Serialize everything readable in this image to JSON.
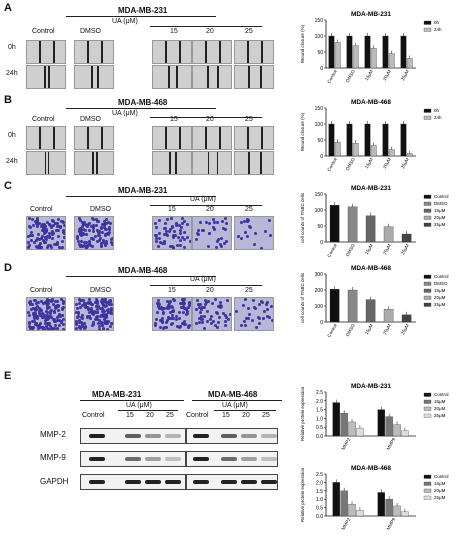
{
  "panels": {
    "A": {
      "letter": "A",
      "title": "MDA-MB-231",
      "col_labels": [
        "Control",
        "DMSO"
      ],
      "ua_label": "UA (μM)",
      "ua_doses": [
        "15",
        "20",
        "25"
      ],
      "row_labels": [
        "0h",
        "24h"
      ]
    },
    "B": {
      "letter": "B",
      "title": "MDA-MB-468",
      "col_labels": [
        "Control",
        "DMSO"
      ],
      "ua_label": "UA (μM)",
      "ua_doses": [
        "15",
        "20",
        "25"
      ],
      "row_labels": [
        "0h",
        "24h"
      ]
    },
    "C": {
      "letter": "C",
      "title": "MDA-MB-231",
      "col_labels": [
        "Control",
        "DMSO"
      ],
      "ua_label": "UA (μM)",
      "ua_doses": [
        "15",
        "20",
        "25"
      ]
    },
    "D": {
      "letter": "D",
      "title": "MDA-MB-468",
      "col_labels": [
        "Control",
        "DMSO"
      ],
      "ua_label": "UA (μM)",
      "ua_doses": [
        "15",
        "20",
        "25"
      ]
    },
    "E": {
      "letter": "E",
      "cell_lines": [
        "MDA-MB-231",
        "MDA-MB-468"
      ],
      "ua_label": "UA (μM)",
      "lane_labels": [
        "Control",
        "15",
        "20",
        "25"
      ],
      "proteins": [
        "MMP-2",
        "MMP-9",
        "GAPDH"
      ]
    }
  },
  "chart_data": [
    {
      "type": "bar",
      "title": "MDA-MB-231",
      "categories": [
        "Control",
        "DMSO",
        "15μM",
        "20μM",
        "25μM"
      ],
      "ylabel": "Wound closure (%)",
      "ylim": [
        0,
        150
      ],
      "yticks": [
        "0",
        "50",
        "100",
        "150"
      ],
      "legend": "top-right",
      "series": [
        {
          "name": "0h",
          "values": [
            100,
            100,
            100,
            100,
            100
          ],
          "color": "#111111"
        },
        {
          "name": "24h",
          "values": [
            80,
            70,
            62,
            45,
            30
          ],
          "color": "#bbbbbb"
        }
      ]
    },
    {
      "type": "bar",
      "title": "MDA-MB-468",
      "categories": [
        "Control",
        "DMSO",
        "15μM",
        "20μM",
        "25μM"
      ],
      "ylabel": "Wound closure (%)",
      "ylim": [
        0,
        150
      ],
      "yticks": [
        "0",
        "50",
        "100",
        "150"
      ],
      "legend": "top-right",
      "series": [
        {
          "name": "0h",
          "values": [
            100,
            100,
            100,
            100,
            100
          ],
          "color": "#111111"
        },
        {
          "name": "24h",
          "values": [
            43,
            40,
            33,
            20,
            8
          ],
          "color": "#bbbbbb"
        }
      ]
    },
    {
      "type": "bar",
      "title": "MDA-MB-231",
      "categories": [
        "Control",
        "DMSO",
        "15μM",
        "20μM",
        "25μM"
      ],
      "ylabel": "cell counts of TNBC cells",
      "ylim": [
        0,
        150
      ],
      "yticks": [
        "0",
        "50",
        "100",
        "150"
      ],
      "legend": "right",
      "series": [
        {
          "name": "",
          "values": [
            115,
            110,
            82,
            48,
            25
          ],
          "colors": [
            "#111111",
            "#888888",
            "#666666",
            "#aaaaaa",
            "#444444"
          ]
        }
      ],
      "legend_entries": [
        "Control",
        "DMSO",
        "15μM",
        "20μM",
        "25μM"
      ]
    },
    {
      "type": "bar",
      "title": "MDA-MB-468",
      "categories": [
        "Control",
        "DMSO",
        "15μM",
        "20μM",
        "25μM"
      ],
      "ylabel": "cell counts of TNBC cells",
      "ylim": [
        0,
        300
      ],
      "yticks": [
        "0",
        "100",
        "200",
        "300"
      ],
      "legend": "right",
      "series": [
        {
          "name": "",
          "values": [
            205,
            200,
            140,
            80,
            45
          ],
          "colors": [
            "#111111",
            "#888888",
            "#666666",
            "#aaaaaa",
            "#444444"
          ]
        }
      ],
      "legend_entries": [
        "Control",
        "DMSO",
        "15μM",
        "20μM",
        "25μM"
      ]
    },
    {
      "type": "bar",
      "title": "MDA-MB-231",
      "categories": [
        "MMP2",
        "MMP9"
      ],
      "ylabel": "Relative protein expression",
      "ylim": [
        0,
        2.5
      ],
      "yticks": [
        "0.0",
        "0.5",
        "1.0",
        "1.5",
        "2.0",
        "2.5"
      ],
      "legend": "right",
      "series": [
        {
          "name": "Control",
          "values": [
            1.9,
            1.5
          ],
          "color": "#111111"
        },
        {
          "name": "15μM",
          "values": [
            1.3,
            1.1
          ],
          "color": "#777777"
        },
        {
          "name": "20μM",
          "values": [
            0.8,
            0.65
          ],
          "color": "#bbbbbb"
        },
        {
          "name": "25μM",
          "values": [
            0.45,
            0.3
          ],
          "color": "#dddddd"
        }
      ]
    },
    {
      "type": "bar",
      "title": "MDA-MB-468",
      "categories": [
        "MMP2",
        "MMP9"
      ],
      "ylabel": "Relative protein expression",
      "ylim": [
        0,
        2.5
      ],
      "yticks": [
        "0.0",
        "0.5",
        "1.0",
        "1.5",
        "2.0",
        "2.5"
      ],
      "legend": "right",
      "series": [
        {
          "name": "Control",
          "values": [
            2.0,
            1.4
          ],
          "color": "#111111"
        },
        {
          "name": "15μM",
          "values": [
            1.5,
            1.0
          ],
          "color": "#777777"
        },
        {
          "name": "20μM",
          "values": [
            0.7,
            0.6
          ],
          "color": "#bbbbbb"
        },
        {
          "name": "25μM",
          "values": [
            0.35,
            0.25
          ],
          "color": "#dddddd"
        }
      ]
    }
  ]
}
